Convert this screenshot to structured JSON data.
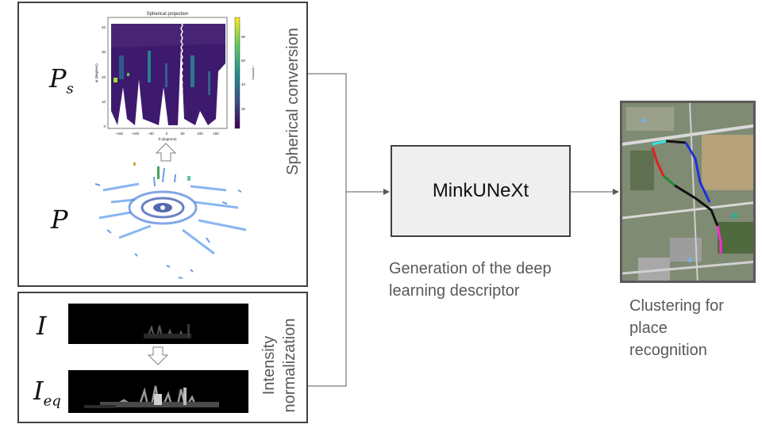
{
  "labels": {
    "ps_symbol": "P",
    "ps_sub": "s",
    "p_symbol": "P",
    "i_symbol": "I",
    "ieq_symbol": "I",
    "ieq_sub": "eq",
    "spherical_conversion": "Spherical conversion",
    "intensity_line1": "Intensity",
    "intensity_line2": "normalization",
    "minkunext": "MinkUNeXt",
    "descriptor_caption_line1": "Generation of the deep",
    "descriptor_caption_line2": "learning descriptor",
    "clustering_line1": "Clustering for",
    "clustering_line2": "place",
    "clustering_line3": "recognition"
  },
  "plot": {
    "title": "Spherical projection",
    "xlabel": "θ (degrees)",
    "ylabel": "φ (degrees)",
    "colorbar_label": "r (meters)",
    "x_ticks": [
      "−150",
      "−100",
      "−50",
      "0",
      "50",
      "100",
      "150"
    ],
    "y_ticks": [
      "0",
      "10",
      "20",
      "30",
      "40"
    ],
    "colorbar_ticks": [
      "20",
      "40",
      "60",
      "80"
    ]
  },
  "colors": {
    "border": "#404040",
    "label_text": "#595959",
    "minkunext_fill": "#efefef",
    "arrow": "#808080",
    "viridis_dark": "#440154",
    "viridis_blue": "#31688e",
    "viridis_yellow": "#fde725"
  }
}
